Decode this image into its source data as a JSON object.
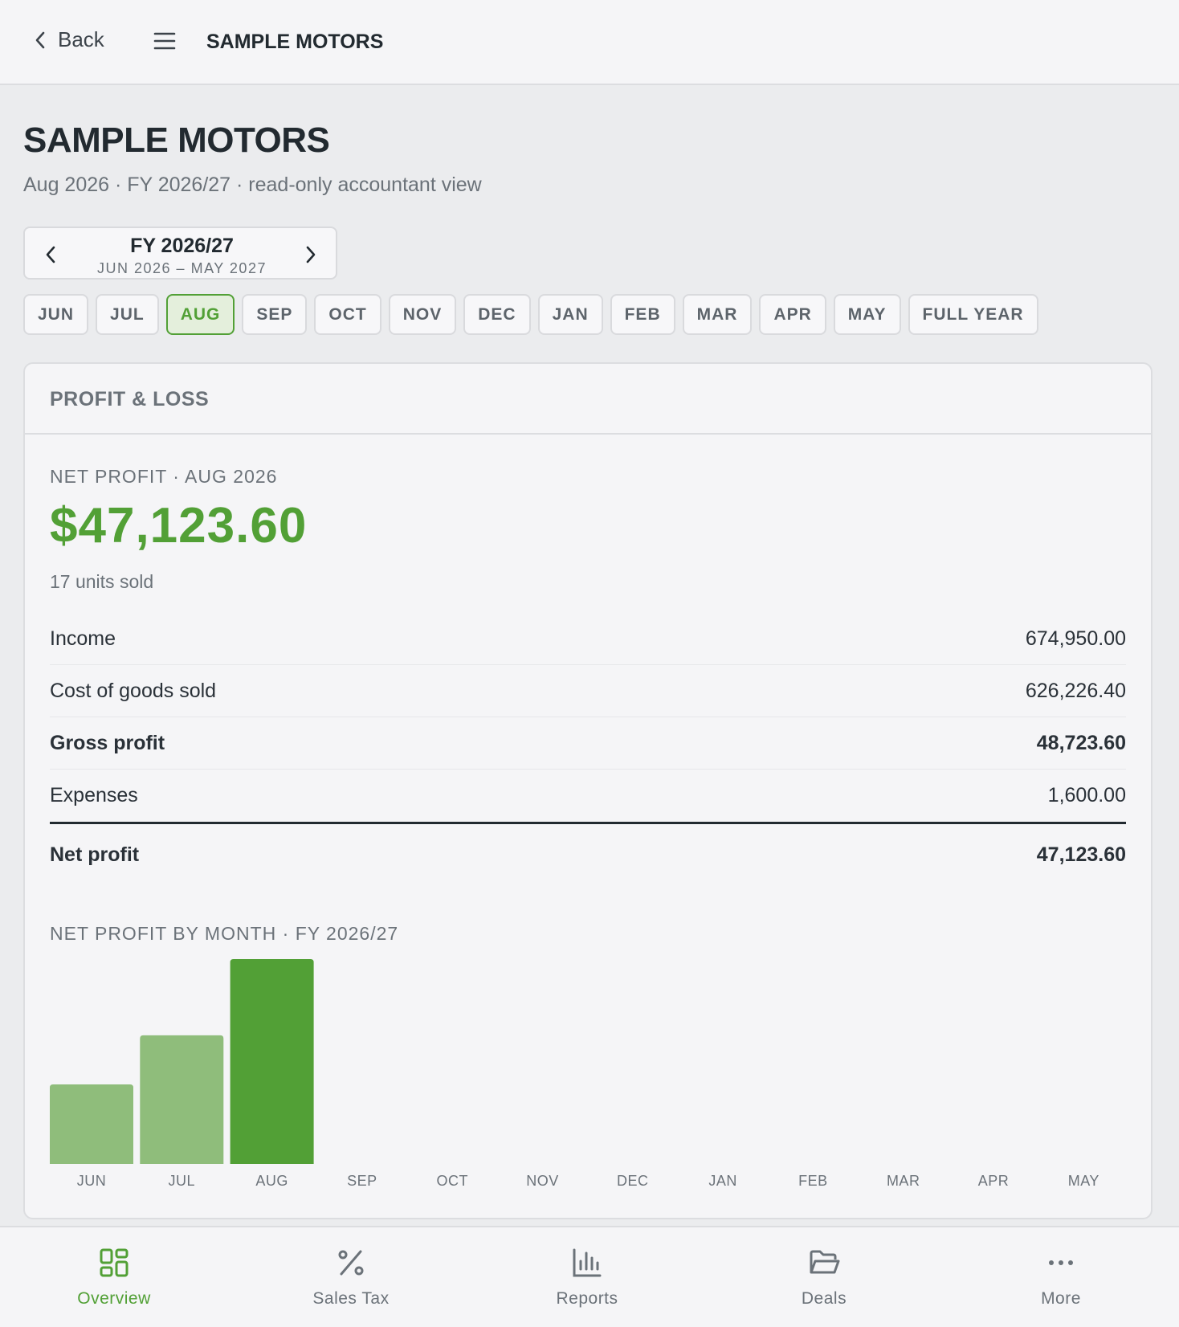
{
  "header": {
    "back": "Back",
    "title": "SAMPLE MOTORS"
  },
  "page": {
    "title": "SAMPLE MOTORS",
    "subtitle": "Aug 2026 · FY 2026/27 · read-only accountant view"
  },
  "period": {
    "fy": "FY 2026/27",
    "range": "JUN 2026 – MAY 2027",
    "months": [
      "JUN",
      "JUL",
      "AUG",
      "SEP",
      "OCT",
      "NOV",
      "DEC",
      "JAN",
      "FEB",
      "MAR",
      "APR",
      "MAY",
      "FULL YEAR"
    ],
    "selected": "AUG"
  },
  "card": {
    "title": "PROFIT & LOSS",
    "net_label": "NET PROFIT · AUG 2026",
    "net_amount": "$47,123.60",
    "units": "17 units sold",
    "rows": [
      {
        "label": "Income",
        "amount": "674,950.00",
        "bold": false
      },
      {
        "label": "Cost of goods sold",
        "amount": "626,226.40",
        "bold": false
      },
      {
        "label": "Gross profit",
        "amount": "48,723.60",
        "bold": true
      },
      {
        "label": "Expenses",
        "amount": "1,600.00",
        "bold": false
      },
      {
        "label": "Net profit",
        "amount": "47,123.60",
        "bold": true
      }
    ]
  },
  "chart_data": {
    "type": "bar",
    "title": "NET PROFIT BY MONTH · FY 2026/27",
    "categories": [
      "JUN",
      "JUL",
      "AUG",
      "SEP",
      "OCT",
      "NOV",
      "DEC",
      "JAN",
      "FEB",
      "MAR",
      "APR",
      "MAY"
    ],
    "values": [
      18300,
      29600,
      47123.6,
      null,
      null,
      null,
      null,
      null,
      null,
      null,
      null,
      null
    ],
    "color": "#8fbd7b",
    "selected_color": "#52a036"
  },
  "nav": [
    {
      "label": "Overview",
      "active": true
    },
    {
      "label": "Sales Tax",
      "active": false
    },
    {
      "label": "Reports",
      "active": false
    },
    {
      "label": "Deals",
      "active": false
    },
    {
      "label": "More",
      "active": false
    }
  ]
}
